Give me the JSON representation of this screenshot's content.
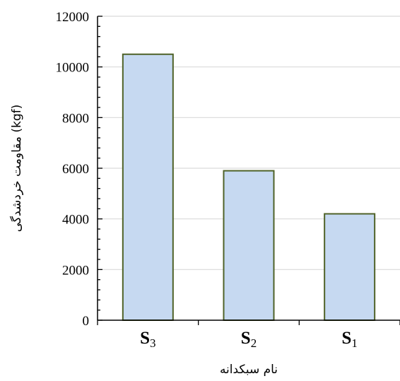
{
  "chart_data": {
    "type": "bar",
    "title": "",
    "xlabel": "نام سبکدانه",
    "ylabel": "مقاومت خردشدگی (kgf)",
    "categories": [
      {
        "letter": "S",
        "sub": "3"
      },
      {
        "letter": "S",
        "sub": "2"
      },
      {
        "letter": "S",
        "sub": "1"
      }
    ],
    "values": [
      10500,
      5900,
      4200
    ],
    "ylim": [
      0,
      12000
    ],
    "yticks": [
      0,
      2000,
      4000,
      6000,
      8000,
      10000,
      12000
    ],
    "grid": true,
    "legend": "none",
    "colors": {
      "bar_fill": "#c6d9f1",
      "bar_stroke": "#4f6228",
      "grid": "#d9d9d9",
      "axis": "#000000"
    }
  }
}
